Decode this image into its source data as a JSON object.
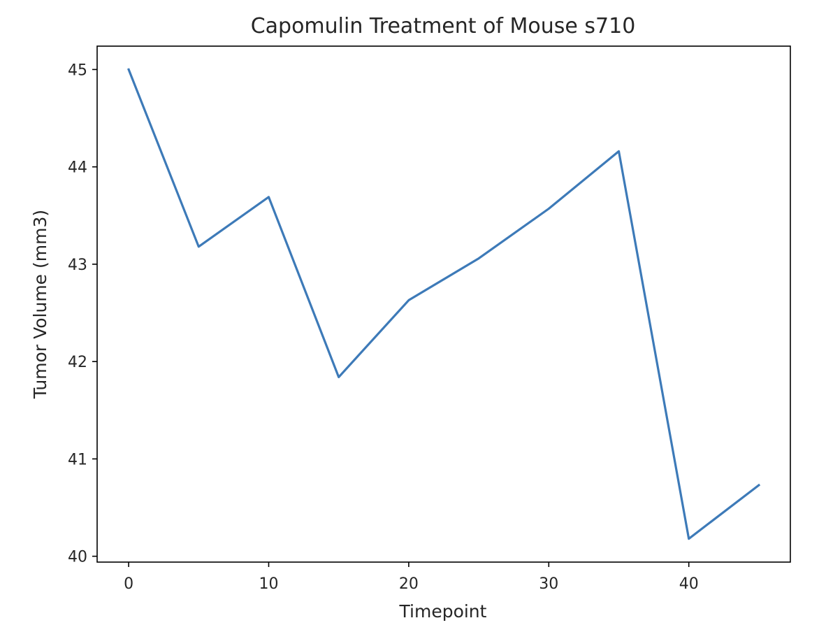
{
  "colors": {
    "line": "#3d7ab8",
    "axes": "#000000",
    "text": "#262626",
    "background": "#ffffff"
  },
  "chart_data": {
    "type": "line",
    "title": "Capomulin Treatment of Mouse s710",
    "xlabel": "Timepoint",
    "ylabel": "Tumor Volume (mm3)",
    "x": [
      0,
      5,
      10,
      15,
      20,
      25,
      30,
      35,
      40,
      45
    ],
    "series": [
      {
        "values": [
          45.0,
          43.18,
          43.69,
          41.84,
          42.63,
          43.06,
          43.57,
          44.16,
          40.18,
          40.73
        ]
      }
    ],
    "xlim": [
      -2.25,
      47.25
    ],
    "ylim": [
      39.94,
      45.24
    ],
    "xticks": [
      0,
      10,
      20,
      30,
      40
    ],
    "yticks": [
      40,
      41,
      42,
      43,
      44,
      45
    ],
    "grid": false
  }
}
